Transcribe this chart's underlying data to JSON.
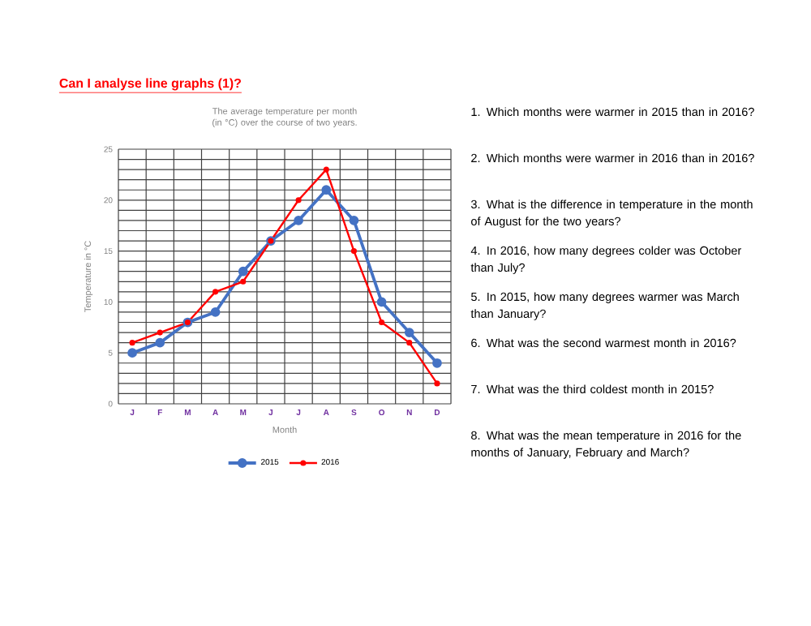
{
  "chart_data": [
    {
      "type": "line",
      "title": "The average temperature per month (in °C) over the course of two years.",
      "xlabel": "Month",
      "ylabel": "Temperature in °C",
      "categories": [
        "J",
        "F",
        "M",
        "A",
        "M",
        "J",
        "J",
        "A",
        "S",
        "O",
        "N",
        "D"
      ],
      "series": [
        {
          "name": "2015",
          "color": "#4472c4",
          "values": [
            5,
            6,
            8,
            9,
            13,
            16,
            18,
            21,
            18,
            10,
            7,
            4
          ]
        },
        {
          "name": "2016",
          "color": "#ff0000",
          "values": [
            6,
            7,
            8,
            11,
            12,
            16,
            20,
            23,
            15,
            8,
            6,
            2
          ]
        }
      ],
      "ylim": [
        0,
        25
      ],
      "yticks": [
        0,
        5,
        10,
        15,
        20,
        25
      ],
      "grid": true,
      "legend": "bottom",
      "marker": "circle",
      "line_style": "solid"
    },
    {
      "type": "other",
      "title": "Can I analyse line graphs (1)?",
      "annotations": [
        "1. Which months were warmer in 2015 than in 2016?",
        "2. Which months were warmer in 2016 than in 2016?",
        "3. What is the difference in temperature in the month of August for the two years?",
        "4. In 2016, how many degrees colder was October than July?",
        "5. In 2015, how many degrees warmer was March than January?",
        "6. What was the second warmest month in 2016?",
        "7. What was the third coldest month in 2015?",
        "8. What was the mean temperature in 2016 for the months of January, February and March?"
      ]
    }
  ]
}
